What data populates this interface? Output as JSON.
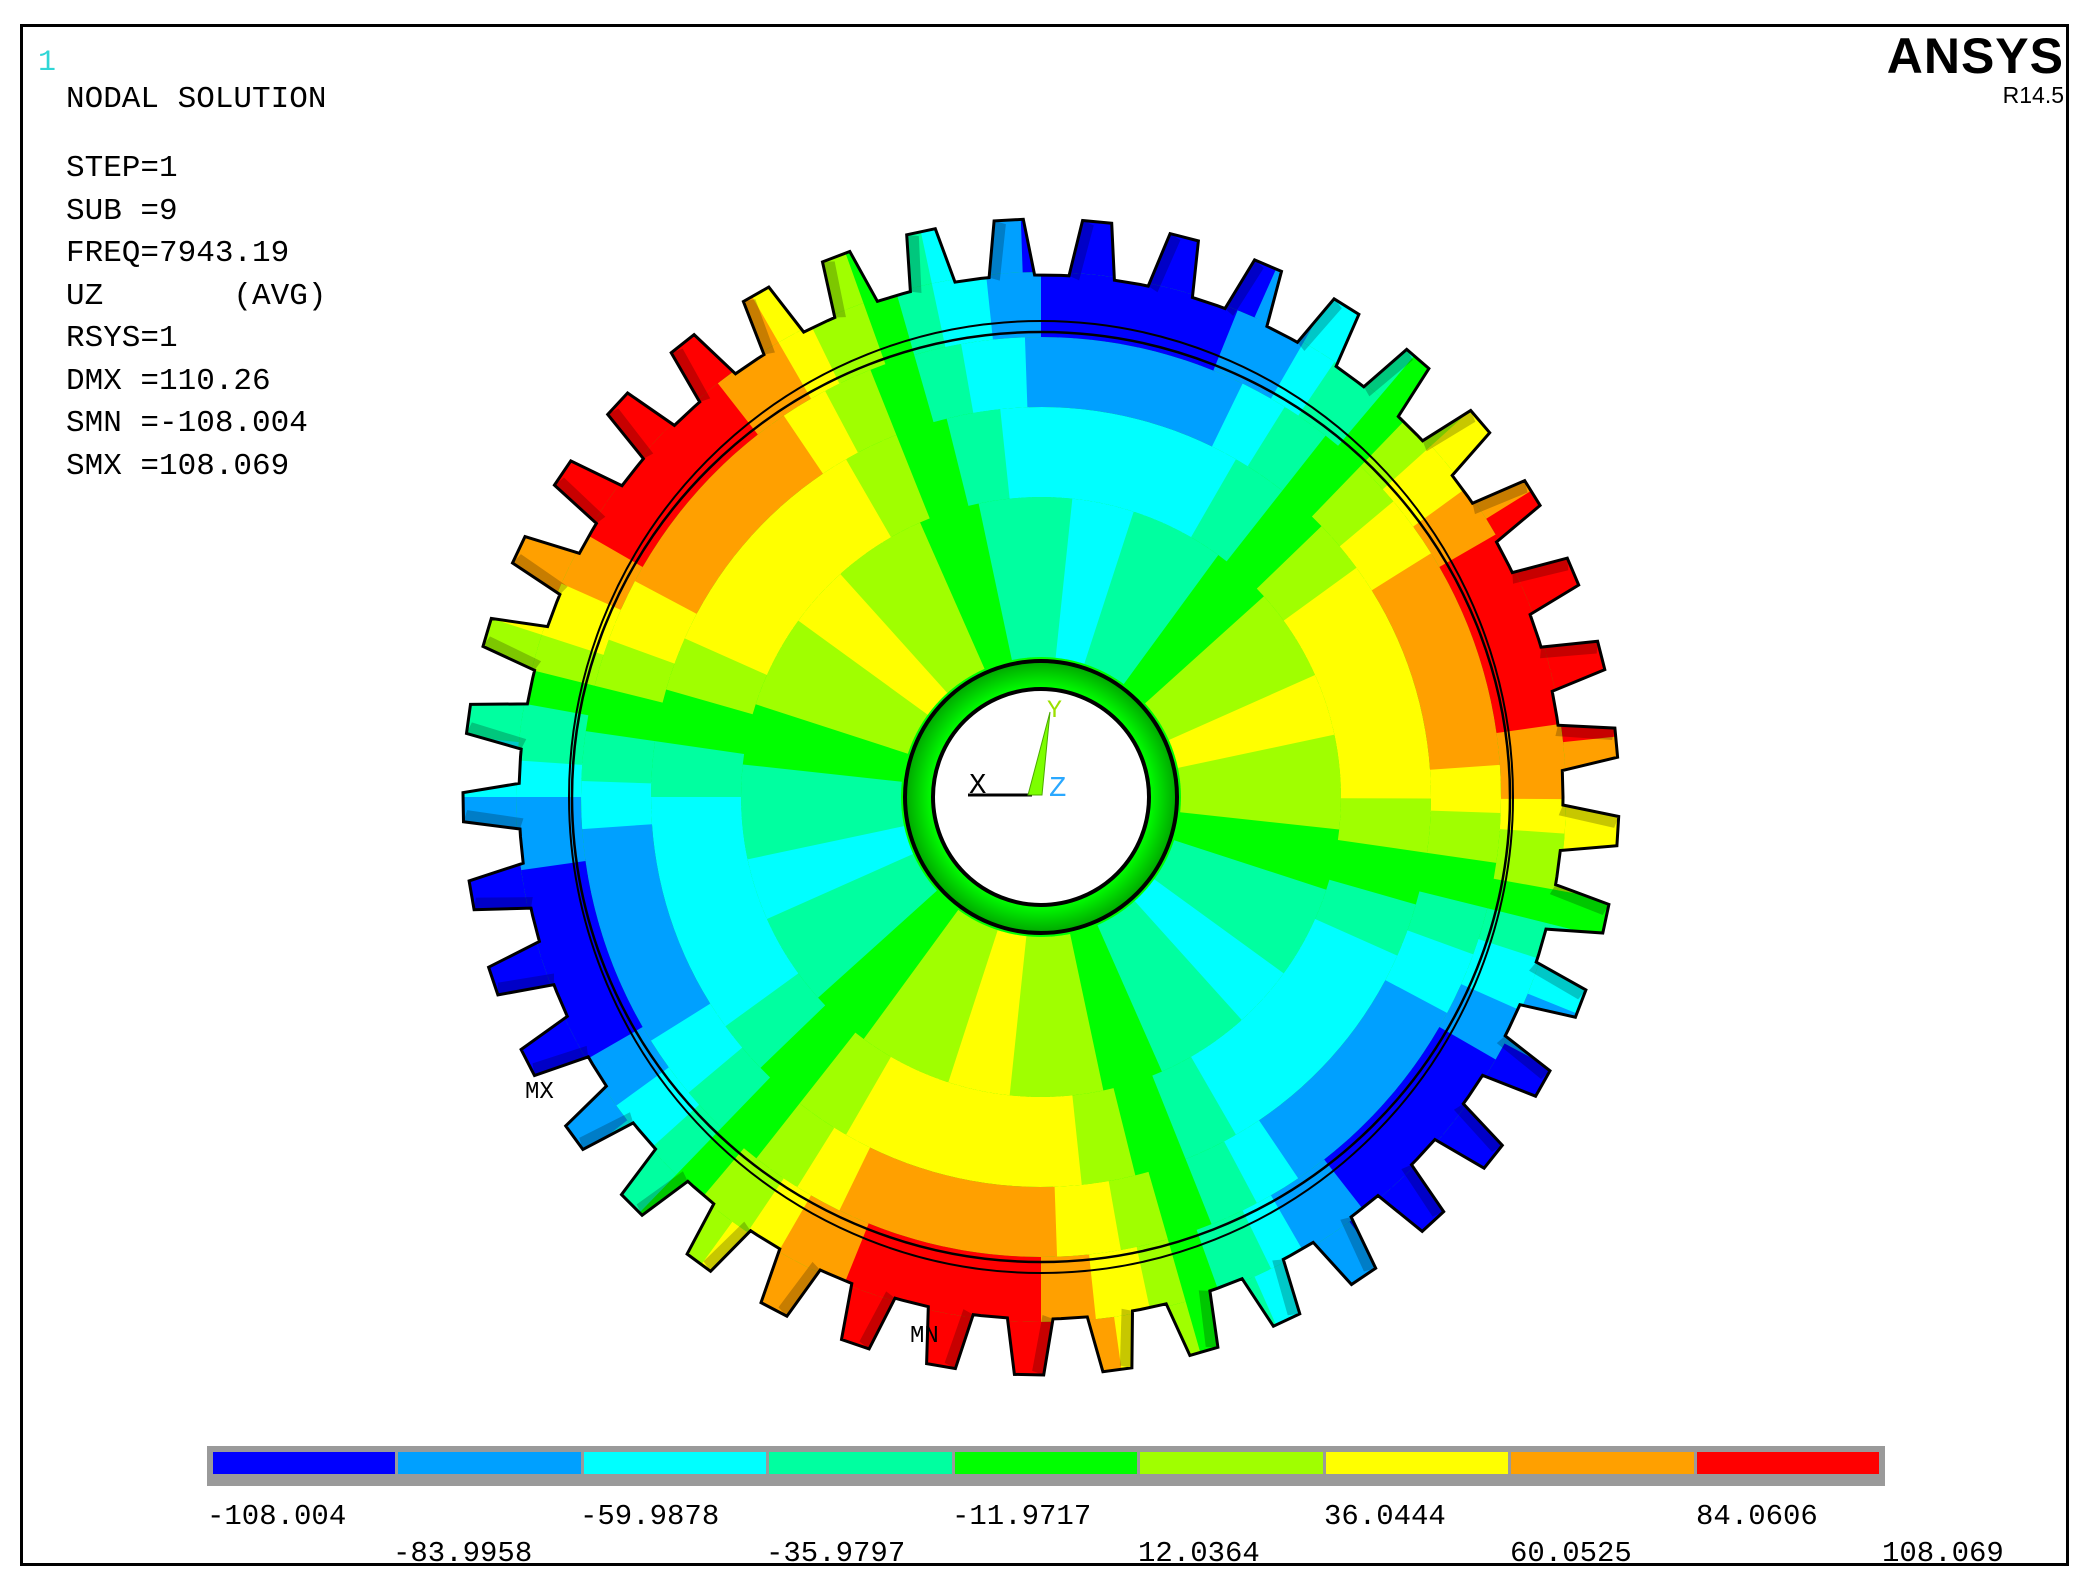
{
  "window_number": "1",
  "solution_title": "NODAL SOLUTION",
  "info_lines": [
    "STEP=1",
    "SUB =9",
    "FREQ=7943.19",
    "UZ       (AVG)",
    "RSYS=1",
    "DMX =110.26",
    "SMN =-108.004",
    "SMX =108.069"
  ],
  "brand": {
    "name": "ANSYS",
    "release": "R14.5"
  },
  "triad": {
    "x_label": "X",
    "y_label": "Y",
    "z_label": "Z"
  },
  "markers": {
    "max_label": "MX",
    "min_label": "MN"
  },
  "legend": {
    "colors": [
      "#0000ff",
      "#00a0ff",
      "#00ffff",
      "#00ffa0",
      "#00ff00",
      "#a0ff00",
      "#ffff00",
      "#ffa000",
      "#ff0000"
    ],
    "values": [
      "-108.004",
      "-83.9958",
      "-59.9878",
      "-35.9797",
      "-11.9717",
      "12.0364",
      "36.0444",
      "60.0525",
      "84.0606",
      "108.069"
    ]
  },
  "contour_colors": {
    "pos_high": "#ff0000",
    "pos_mid": "#ffa000",
    "pos_low": "#ffff00",
    "pos_near": "#a0ff00",
    "zero": "#00ff00",
    "neg_near": "#00ffa0",
    "neg_low": "#00ffff",
    "neg_mid": "#00a0ff",
    "neg_high": "#0000ff"
  },
  "mode_shape": {
    "nodal_diameters": 3,
    "tooth_count": 41
  }
}
